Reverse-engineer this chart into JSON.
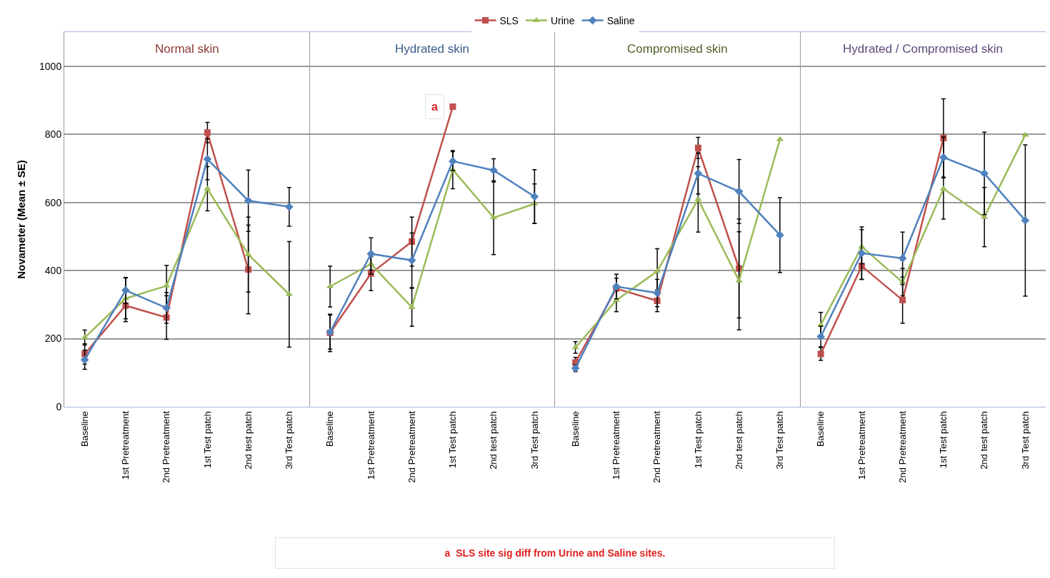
{
  "chart_data": [
    {
      "type": "line",
      "title": "Normal skin",
      "ylabel": "Novameter (Mean ± SE)",
      "categories": [
        "Baseline",
        "1st Pretreatment",
        "2nd Pretreatment",
        "1st Test patch",
        "2nd test patch",
        "3rd Test patch"
      ],
      "ylim": [
        0,
        1100
      ],
      "yticks": [
        0,
        200,
        400,
        600,
        800,
        1000
      ],
      "grid": "y",
      "legend": "top",
      "series": [
        {
          "name": "SLS",
          "color": "#c0504d",
          "marker": "square",
          "values": [
            155,
            297,
            262,
            805,
            403,
            null
          ],
          "errors": [
            30,
            47,
            64,
            30,
            130,
            null
          ]
        },
        {
          "name": "Urine",
          "color": "#9bbb59",
          "marker": "triangle",
          "values": [
            203,
            318,
            355,
            640,
            447,
            330
          ],
          "errors": [
            22,
            60,
            60,
            65,
            110,
            155
          ]
        },
        {
          "name": "Saline",
          "color": "#4f81bd",
          "marker": "diamond",
          "values": [
            138,
            342,
            290,
            727,
            605,
            587
          ],
          "errors": [
            28,
            38,
            45,
            60,
            90,
            57
          ]
        }
      ],
      "annotations": [
        "a  SLS site sig diff from Urine and Saline sites."
      ]
    },
    {
      "type": "line",
      "title": "Hydrated skin",
      "categories": [
        "Baseline",
        "1st Pretreatment",
        "2nd Pretreatment",
        "1st Test patch",
        "2nd test patch",
        "3rd Test patch"
      ],
      "ylim": [
        0,
        1100
      ],
      "grid": "y",
      "tick_labels": "x",
      "series": [
        {
          "color": "#c0504d",
          "marker": "square",
          "values": [
            217,
            391,
            485,
            881,
            null,
            null
          ],
          "errors": [
            55,
            50,
            72,
            null,
            null,
            null
          ]
        },
        {
          "color": "#9bbb59",
          "marker": "triangle",
          "values": [
            353,
            419,
            292,
            696,
            555,
            596
          ],
          "errors": [
            60,
            30,
            56,
            56,
            108,
            58
          ]
        },
        {
          "color": "#4f81bd",
          "marker": "diamond",
          "values": [
            219,
            449,
            430,
            721,
            694,
            617
          ],
          "errors": [
            50,
            47,
            80,
            28,
            34,
            79
          ]
        }
      ],
      "annotations": [
        {
          "text": "a",
          "x": "1st Test patch",
          "y": 881
        }
      ]
    },
    {
      "type": "line",
      "title": "Compromised skin",
      "categories": [
        "Baseline",
        "1st Pretreatment",
        "2nd Pretreatment",
        "1st Test patch",
        "2nd test patch",
        "3rd Test patch"
      ],
      "ylim": [
        0,
        1100
      ],
      "grid": "y",
      "tick_labels": "x",
      "series": [
        {
          "color": "#c0504d",
          "marker": "square",
          "values": [
            130,
            347,
            311,
            760,
            406,
            null
          ],
          "errors": [
            15,
            30,
            32,
            31,
            145,
            null
          ]
        },
        {
          "color": "#9bbb59",
          "marker": "triangle",
          "values": [
            174,
            313,
            398,
            609,
            370,
            785
          ],
          "errors": [
            17,
            34,
            66,
            96,
            144,
            null
          ]
        },
        {
          "color": "#4f81bd",
          "marker": "diamond",
          "values": [
            113,
            353,
            334,
            685,
            632,
            504
          ],
          "errors": [
            10,
            36,
            40,
            60,
            94,
            110
          ]
        }
      ]
    },
    {
      "type": "line",
      "title": "Hydrated / Compromised skin",
      "categories": [
        "Baseline",
        "1st Pretreatment",
        "2nd Pretreatment",
        "1st Test patch",
        "2nd test patch",
        "3rd Test patch"
      ],
      "ylim": [
        0,
        1100
      ],
      "grid": "y",
      "tick_labels": "x",
      "series": [
        {
          "color": "#c0504d",
          "marker": "square",
          "values": [
            155,
            413,
            313,
            789,
            null,
            null
          ],
          "errors": [
            19,
            39,
            68,
            115,
            null,
            null
          ]
        },
        {
          "color": "#9bbb59",
          "marker": "triangle",
          "values": [
            240,
            470,
            366,
            640,
            557,
            798
          ],
          "errors": [
            37,
            50,
            40,
            89,
            87,
            null
          ]
        },
        {
          "color": "#4f81bd",
          "marker": "diamond",
          "values": [
            206,
            451,
            436,
            732,
            685,
            547
          ],
          "errors": [
            30,
            77,
            77,
            60,
            121,
            222
          ]
        }
      ]
    }
  ]
}
